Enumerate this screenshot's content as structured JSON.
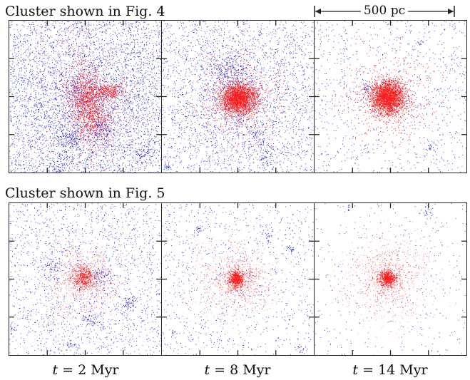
{
  "rows": [
    {
      "title": "Cluster shown in Fig. 4"
    },
    {
      "title": "Cluster shown in Fig. 5"
    }
  ],
  "scale_bar": {
    "label": "500 pc"
  },
  "columns": [
    {
      "time_var": "t",
      "time_rest": " = 2 Myr"
    },
    {
      "time_var": "t",
      "time_rest": " = 8 Myr"
    },
    {
      "time_var": "t",
      "time_rest": " = 14 Myr"
    }
  ],
  "colors": {
    "gas": "#1a1ad9",
    "stars": "#ff1a1a",
    "frame": "#222222"
  },
  "panels": [
    {
      "row": 0,
      "col": 0,
      "gas_density": "high",
      "star_extent": "elongated",
      "star_count": 1600
    },
    {
      "row": 0,
      "col": 1,
      "gas_density": "medium",
      "star_extent": "compact-dense",
      "star_count": 2600
    },
    {
      "row": 0,
      "col": 2,
      "gas_density": "low",
      "star_extent": "compact-dense",
      "star_count": 2800
    },
    {
      "row": 1,
      "col": 0,
      "gas_density": "low",
      "star_extent": "small",
      "star_count": 450
    },
    {
      "row": 1,
      "col": 1,
      "gas_density": "low",
      "star_extent": "small",
      "star_count": 650
    },
    {
      "row": 1,
      "col": 2,
      "gas_density": "very-low",
      "star_extent": "small",
      "star_count": 650
    }
  ]
}
